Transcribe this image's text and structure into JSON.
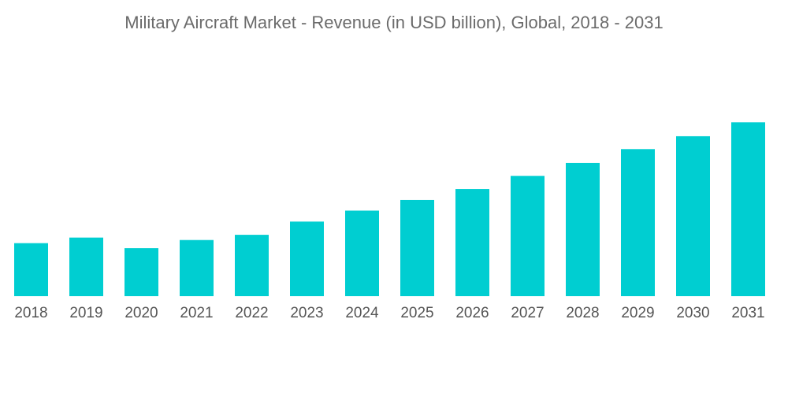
{
  "chart_data": {
    "type": "bar",
    "title": "Military Aircraft Market - Revenue (in USD billion), Global, 2018 - 2031",
    "xlabel": "",
    "ylabel": "",
    "y_axis_shown": false,
    "value_note": "relative bar heights, 2031 = 100 (no y-axis printed)",
    "categories": [
      "2018",
      "2019",
      "2020",
      "2021",
      "2022",
      "2023",
      "2024",
      "2025",
      "2026",
      "2027",
      "2028",
      "2029",
      "2030",
      "2031"
    ],
    "values": [
      30.5,
      33.7,
      27.6,
      32.3,
      35.3,
      42.9,
      49.2,
      55.3,
      61.6,
      69.2,
      76.6,
      84.6,
      92.0,
      100
    ],
    "ylim": [
      0,
      100
    ],
    "grid": false,
    "legend": "none",
    "bar_color": "#00CED1"
  }
}
